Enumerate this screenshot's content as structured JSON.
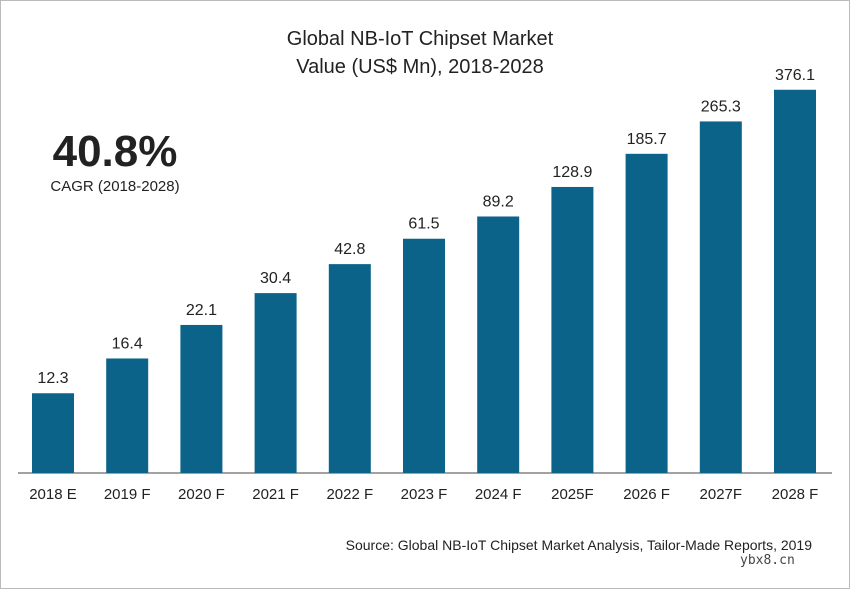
{
  "chart_data": {
    "type": "bar",
    "title": "Global NB-IoT Chipset Market Value (US$ Mn), 2018-2028",
    "title_lines": [
      "Global NB-IoT Chipset Market",
      "Value (US$ Mn), 2018-2028"
    ],
    "categories": [
      "2018 E",
      "2019 F",
      "2020 F",
      "2021 F",
      "2022 F",
      "2023 F",
      "2024 F",
      "2025F",
      "2026 F",
      "2027F",
      "2028 F"
    ],
    "values": [
      12.3,
      16.4,
      22.1,
      30.4,
      42.8,
      61.5,
      89.2,
      128.9,
      185.7,
      265.3,
      376.1
    ],
    "data_labels": [
      "12.3",
      "16.4",
      "22.1",
      "30.4",
      "42.8",
      "61.5",
      "89.2",
      "128.9",
      "185.7",
      "265.3",
      "376.1"
    ],
    "bar_color": "#0b6389",
    "grid": false,
    "legend": "none",
    "xlabel": "",
    "ylabel": "",
    "annotation": {
      "value": "40.8%",
      "label": "CAGR (2018-2028)"
    },
    "source": "Source: Global NB-IoT Chipset Market Analysis, Tailor-Made Reports, 2019"
  },
  "watermark": "ybx8.cn"
}
